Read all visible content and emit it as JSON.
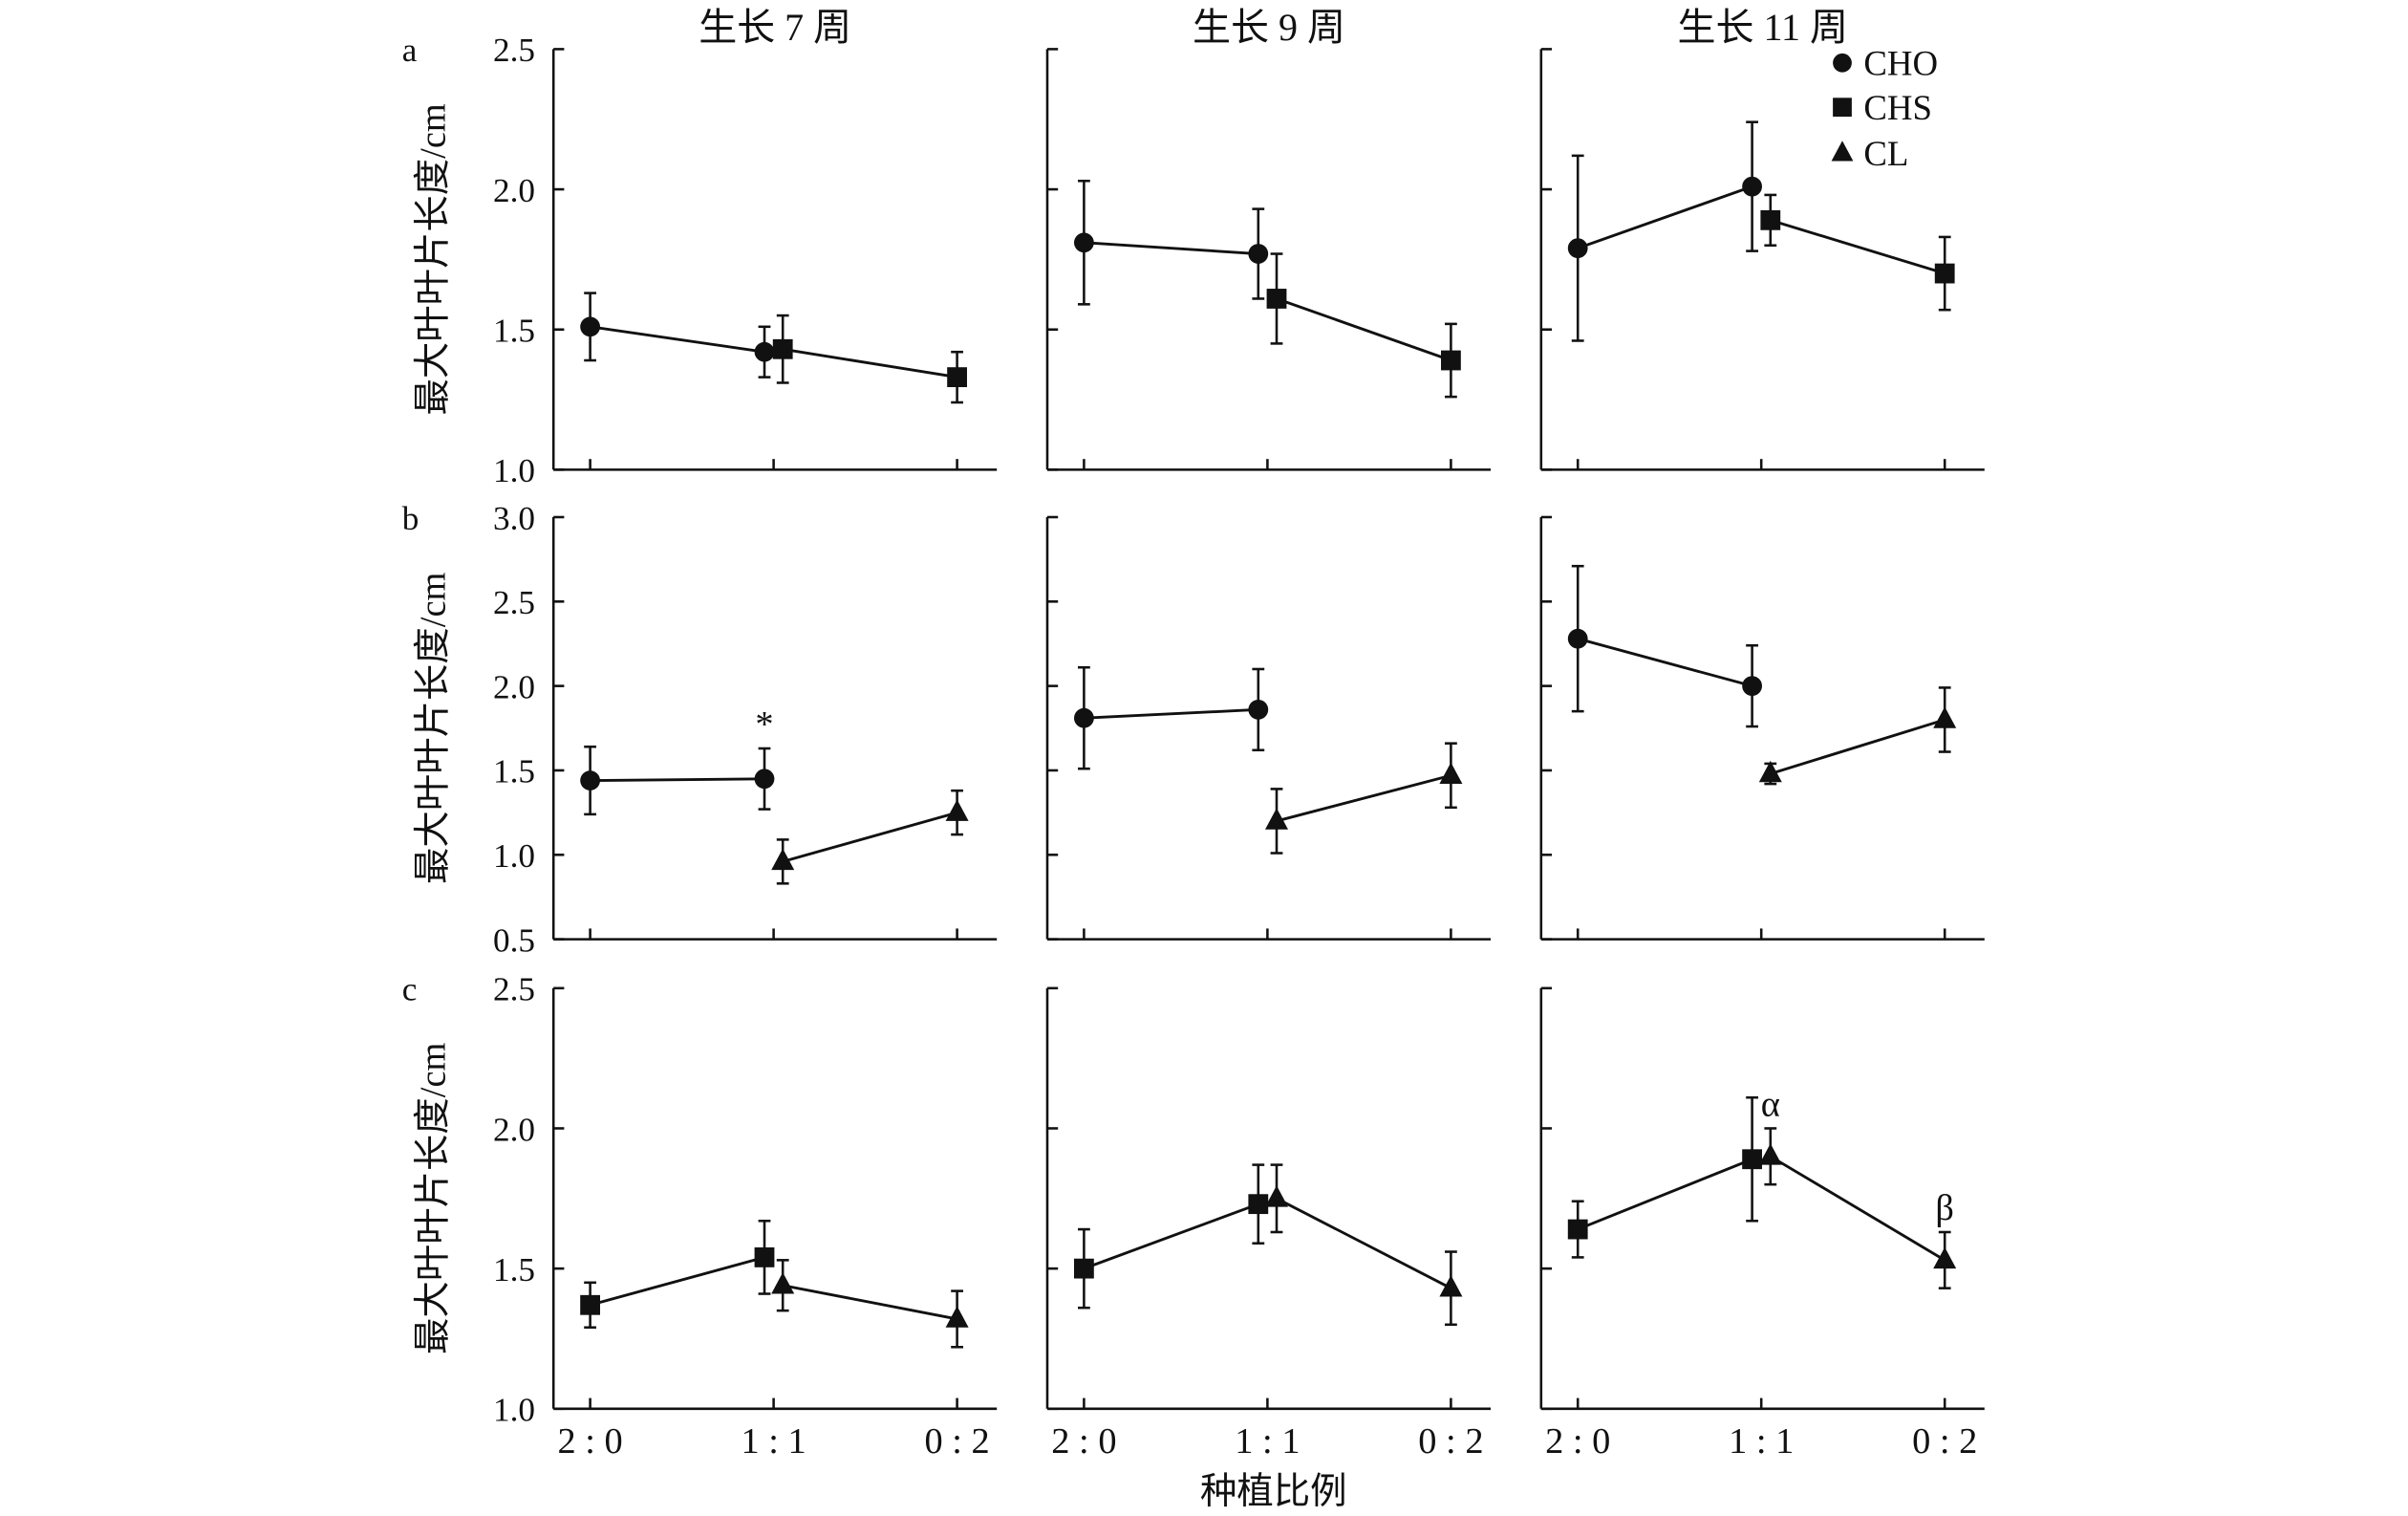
{
  "colors": {
    "ink": "#111111",
    "background": "#ffffff"
  },
  "chart_data": {
    "type": "line",
    "xlabel": "种植比例",
    "categories": [
      "2 : 0",
      "1 : 1",
      "0 : 2"
    ],
    "grid": false,
    "error_bars": true,
    "legend": {
      "placement": "top-right",
      "entries": [
        {
          "name": "CHO",
          "marker": "circle"
        },
        {
          "name": "CHS",
          "marker": "square"
        },
        {
          "name": "CL",
          "marker": "triangle"
        }
      ]
    },
    "columns": [
      {
        "title": "生长 7 周"
      },
      {
        "title": "生长 9 周"
      },
      {
        "title": "生长 11 周"
      }
    ],
    "rows": [
      {
        "label": "a",
        "ylabel": "最大叶叶片长度/cm",
        "ylim": [
          1.0,
          2.5
        ],
        "yticks": [
          "1.0",
          "1.5",
          "2.0",
          "2.5"
        ],
        "panels": [
          {
            "series": [
              {
                "name": "CHO",
                "values": [
                  1.51,
                  1.42,
                  null
                ],
                "errors": [
                  0.12,
                  0.09,
                  null
                ]
              },
              {
                "name": "CHS",
                "values": [
                  null,
                  1.43,
                  1.33
                ],
                "errors": [
                  null,
                  0.12,
                  0.09
                ]
              }
            ],
            "annotations": []
          },
          {
            "series": [
              {
                "name": "CHO",
                "values": [
                  1.81,
                  1.77,
                  null
                ],
                "errors": [
                  0.22,
                  0.16,
                  null
                ]
              },
              {
                "name": "CHS",
                "values": [
                  null,
                  1.61,
                  1.39
                ],
                "errors": [
                  null,
                  0.16,
                  0.13
                ]
              }
            ],
            "annotations": []
          },
          {
            "series": [
              {
                "name": "CHO",
                "values": [
                  1.79,
                  2.01,
                  null
                ],
                "errors": [
                  0.33,
                  0.23,
                  null
                ]
              },
              {
                "name": "CHS",
                "values": [
                  null,
                  1.89,
                  1.7
                ],
                "errors": [
                  null,
                  0.09,
                  0.13
                ]
              }
            ],
            "annotations": []
          }
        ]
      },
      {
        "label": "b",
        "ylabel": "最大叶叶片长度/cm",
        "ylim": [
          0.5,
          3.0
        ],
        "yticks": [
          "0.5",
          "1.0",
          "1.5",
          "2.0",
          "2.5",
          "3.0"
        ],
        "panels": [
          {
            "series": [
              {
                "name": "CHO",
                "values": [
                  1.44,
                  1.45,
                  null
                ],
                "errors": [
                  0.2,
                  0.18,
                  null
                ]
              },
              {
                "name": "CL",
                "values": [
                  null,
                  0.96,
                  1.25
                ],
                "errors": [
                  null,
                  0.13,
                  0.13
                ]
              }
            ],
            "annotations": [
              {
                "text": "*",
                "series": "CHO",
                "x": "1 : 1"
              }
            ]
          },
          {
            "series": [
              {
                "name": "CHO",
                "values": [
                  1.81,
                  1.86,
                  null
                ],
                "errors": [
                  0.3,
                  0.24,
                  null
                ]
              },
              {
                "name": "CL",
                "values": [
                  null,
                  1.2,
                  1.47
                ],
                "errors": [
                  null,
                  0.19,
                  0.19
                ]
              }
            ],
            "annotations": []
          },
          {
            "series": [
              {
                "name": "CHO",
                "values": [
                  2.28,
                  2.0,
                  null
                ],
                "errors": [
                  0.43,
                  0.24,
                  null
                ]
              },
              {
                "name": "CL",
                "values": [
                  null,
                  1.48,
                  1.8
                ],
                "errors": [
                  null,
                  0.06,
                  0.19
                ]
              }
            ],
            "annotations": []
          }
        ]
      },
      {
        "label": "c",
        "ylabel": "最大叶叶片长度/cm",
        "ylim": [
          1.0,
          2.5
        ],
        "yticks": [
          "1.0",
          "1.5",
          "2.0",
          "2.5"
        ],
        "panels": [
          {
            "series": [
              {
                "name": "CHS",
                "values": [
                  1.37,
                  1.54,
                  null
                ],
                "errors": [
                  0.08,
                  0.13,
                  null
                ]
              },
              {
                "name": "CL",
                "values": [
                  null,
                  1.44,
                  1.32
                ],
                "errors": [
                  null,
                  0.09,
                  0.1
                ]
              }
            ],
            "annotations": []
          },
          {
            "series": [
              {
                "name": "CHS",
                "values": [
                  1.5,
                  1.73,
                  null
                ],
                "errors": [
                  0.14,
                  0.14,
                  null
                ]
              },
              {
                "name": "CL",
                "values": [
                  null,
                  1.75,
                  1.43
                ],
                "errors": [
                  null,
                  0.12,
                  0.13
                ]
              }
            ],
            "annotations": []
          },
          {
            "series": [
              {
                "name": "CHS",
                "values": [
                  1.64,
                  1.89,
                  null
                ],
                "errors": [
                  0.1,
                  0.22,
                  null
                ]
              },
              {
                "name": "CL",
                "values": [
                  null,
                  1.9,
                  1.53
                ],
                "errors": [
                  null,
                  0.1,
                  0.1
                ]
              }
            ],
            "annotations": [
              {
                "text": "α",
                "series": "CL",
                "x": "1 : 1"
              },
              {
                "text": "β",
                "series": "CL",
                "x": "0 : 2"
              }
            ]
          }
        ]
      }
    ]
  }
}
